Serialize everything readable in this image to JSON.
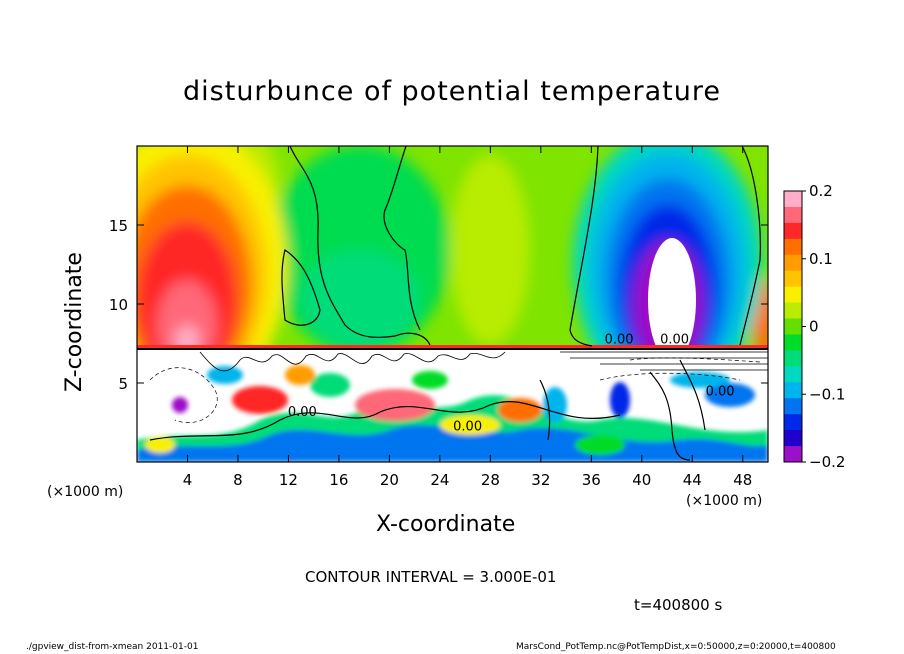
{
  "chart_data": {
    "type": "heatmap",
    "title": "disturbunce of potential temperature",
    "xlabel": "X-coordinate",
    "ylabel": "Z-coordinate",
    "x_unit": "(×1000 m)",
    "z_unit": "(×1000 m)",
    "xlim": [
      0,
      50
    ],
    "ylim": [
      0,
      20
    ],
    "x_ticks": [
      "4",
      "8",
      "12",
      "16",
      "20",
      "24",
      "28",
      "32",
      "36",
      "40",
      "44",
      "48"
    ],
    "y_ticks": [
      "5",
      "10",
      "15"
    ],
    "colorbar": {
      "range": [
        -0.2,
        0.2
      ],
      "tick_labels": [
        "0.2",
        "0.1",
        "0",
        "−0.1",
        "−0.2"
      ],
      "colors": [
        "#ffb0c8",
        "#ff6878",
        "#ff2828",
        "#ff6e00",
        "#ff9c00",
        "#ffc400",
        "#f8f000",
        "#b8ec00",
        "#64e000",
        "#00dc28",
        "#00dc78",
        "#00d8c0",
        "#00b4ec",
        "#0074f0",
        "#0028e8",
        "#2000cc",
        "#9c10c8"
      ]
    },
    "contour_labels": [
      "0.00",
      "0.00",
      "0.00",
      "0.00",
      "0.00"
    ],
    "contour_interval": "CONTOUR INTERVAL = 3.000E-01",
    "time": "t=400800 s"
  },
  "footer": {
    "left": "./gpview_dist-from-xmean   2011-01-01",
    "right": "MarsCond_PotTemp.nc@PotTempDist,x=0:50000,z=0:20000,t=400800"
  }
}
